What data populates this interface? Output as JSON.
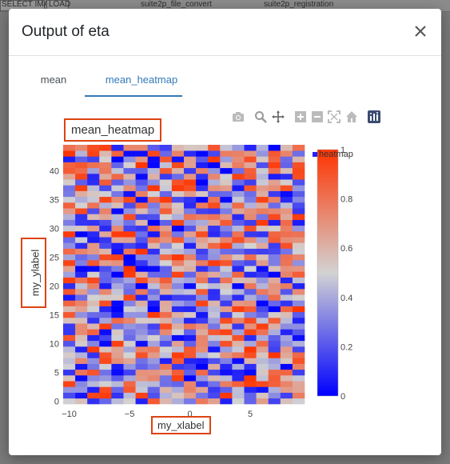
{
  "background": {
    "left_text": "SELECT IMAGE",
    "load_text": "LOAD",
    "node_a": "suite2p_file_convert",
    "node_b": "suite2p_registration"
  },
  "modal": {
    "title": "Output of eta",
    "close_icon": "close-icon"
  },
  "tabs": [
    {
      "label": "mean",
      "active": false
    },
    {
      "label": "mean_heatmap",
      "active": true
    }
  ],
  "plot": {
    "title": "mean_heatmap",
    "legend_label": "heatmap",
    "modebar_icons": [
      "camera-icon",
      "zoom-icon",
      "pan-icon",
      "zoom-in-icon",
      "zoom-out-icon",
      "autoscale-icon",
      "reset-axes-icon",
      "plotly-logo-icon"
    ]
  },
  "chart_data": {
    "type": "heatmap",
    "title": "mean_heatmap",
    "xlabel": "my_xlabel",
    "ylabel": "my_ylabel",
    "x_range": [
      -10,
      9
    ],
    "y_range": [
      0,
      44
    ],
    "x_ticks": [
      -10,
      -5,
      0,
      5
    ],
    "y_ticks": [
      0,
      5,
      10,
      15,
      20,
      25,
      30,
      35,
      40
    ],
    "colorbar_ticks": [
      0,
      0.2,
      0.4,
      0.6,
      0.8,
      1
    ],
    "colorscale": [
      "#0000ff",
      "#d3d3d3",
      "#ff3300"
    ],
    "zmin": 0,
    "zmax": 1,
    "seed": 7
  }
}
